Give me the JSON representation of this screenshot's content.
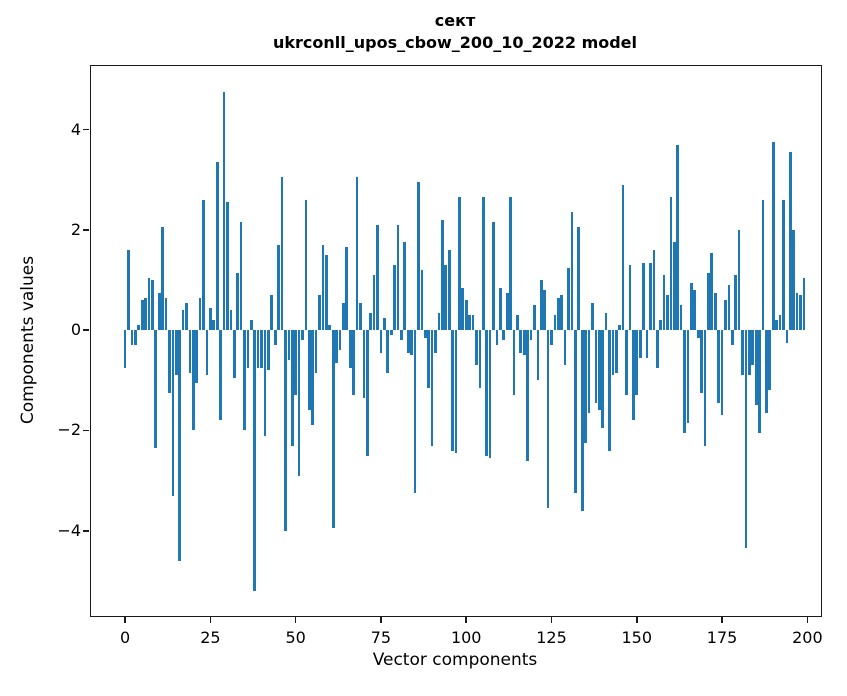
{
  "title": "сект",
  "subtitle": "ukrconll_upos_cbow_200_10_2022 model",
  "xlabel": "Vector components",
  "ylabel": "Components values",
  "chart_data": {
    "type": "bar",
    "title": "сект",
    "subtitle": "ukrconll_upos_cbow_200_10_2022 model",
    "xlabel": "Vector components",
    "ylabel": "Components values",
    "bar_color": "#1f77b4",
    "background": "#ffffff",
    "grid": false,
    "x_ticks": [
      0,
      25,
      50,
      75,
      100,
      125,
      150,
      175,
      200
    ],
    "y_ticks": [
      4,
      2,
      0,
      -2,
      -4
    ],
    "y_tick_labels": [
      "4",
      "2",
      "0",
      "−2",
      "−4"
    ],
    "xlim": [
      -10,
      204
    ],
    "ylim": [
      -5.7,
      5.27
    ],
    "n_components": 200,
    "values": [
      -0.75,
      1.6,
      -0.3,
      -0.3,
      0.1,
      0.6,
      0.65,
      1.05,
      1.0,
      -2.35,
      0.75,
      2.05,
      0.65,
      -1.25,
      -3.3,
      -0.9,
      -4.6,
      0.4,
      0.55,
      -0.85,
      -2.0,
      -1.05,
      0.65,
      2.6,
      -0.9,
      0.45,
      0.2,
      3.35,
      -1.8,
      4.75,
      2.55,
      0.4,
      -0.95,
      1.15,
      2.15,
      -2.0,
      -0.75,
      0.2,
      -5.2,
      -0.75,
      -0.75,
      -2.1,
      -0.8,
      0.7,
      -0.3,
      1.7,
      3.05,
      -4.0,
      -0.6,
      -2.3,
      -1.3,
      -2.9,
      -0.2,
      2.6,
      -1.6,
      -1.9,
      -0.85,
      0.7,
      1.7,
      1.5,
      0.1,
      -3.95,
      -0.65,
      -0.4,
      0.55,
      1.65,
      -0.75,
      -1.3,
      3.05,
      0.55,
      -1.35,
      -2.5,
      0.35,
      1.1,
      2.1,
      -0.45,
      0.25,
      -0.85,
      -0.1,
      1.3,
      2.1,
      -0.2,
      1.75,
      -0.45,
      -0.5,
      -3.25,
      2.95,
      1.2,
      -0.15,
      -1.15,
      -2.3,
      -0.45,
      0.35,
      2.2,
      1.3,
      1.6,
      -2.4,
      -2.45,
      2.65,
      0.85,
      0.6,
      0.3,
      0.3,
      -0.7,
      -1.15,
      2.65,
      -2.5,
      -2.55,
      2.15,
      -0.3,
      0.85,
      -0.2,
      0.75,
      2.65,
      -1.3,
      0.3,
      -0.45,
      -0.5,
      -2.6,
      -0.2,
      0.5,
      -1.0,
      1.0,
      0.8,
      -3.55,
      -0.3,
      0.3,
      0.65,
      0.7,
      -0.7,
      1.25,
      2.35,
      -3.25,
      2.05,
      -3.6,
      -2.25,
      -1.65,
      0.55,
      -1.45,
      -1.6,
      -1.95,
      0.35,
      -2.4,
      -0.9,
      -0.85,
      0.1,
      2.9,
      -1.3,
      1.3,
      -1.8,
      -1.3,
      -0.55,
      1.35,
      -0.55,
      1.35,
      1.6,
      -0.75,
      0.2,
      1.1,
      0.7,
      2.65,
      1.75,
      3.7,
      0.5,
      -2.05,
      -1.85,
      0.95,
      0.8,
      -0.15,
      -1.25,
      -2.3,
      1.15,
      1.55,
      0.75,
      -1.45,
      -1.7,
      0.6,
      0.9,
      -0.3,
      1.1,
      2.0,
      -0.9,
      -4.35,
      -0.9,
      -0.7,
      -1.5,
      -2.05,
      2.6,
      -1.65,
      -1.2,
      3.75,
      0.2,
      0.3,
      2.6,
      -0.25,
      3.55,
      2.0,
      0.75,
      0.7,
      1.05
    ]
  }
}
